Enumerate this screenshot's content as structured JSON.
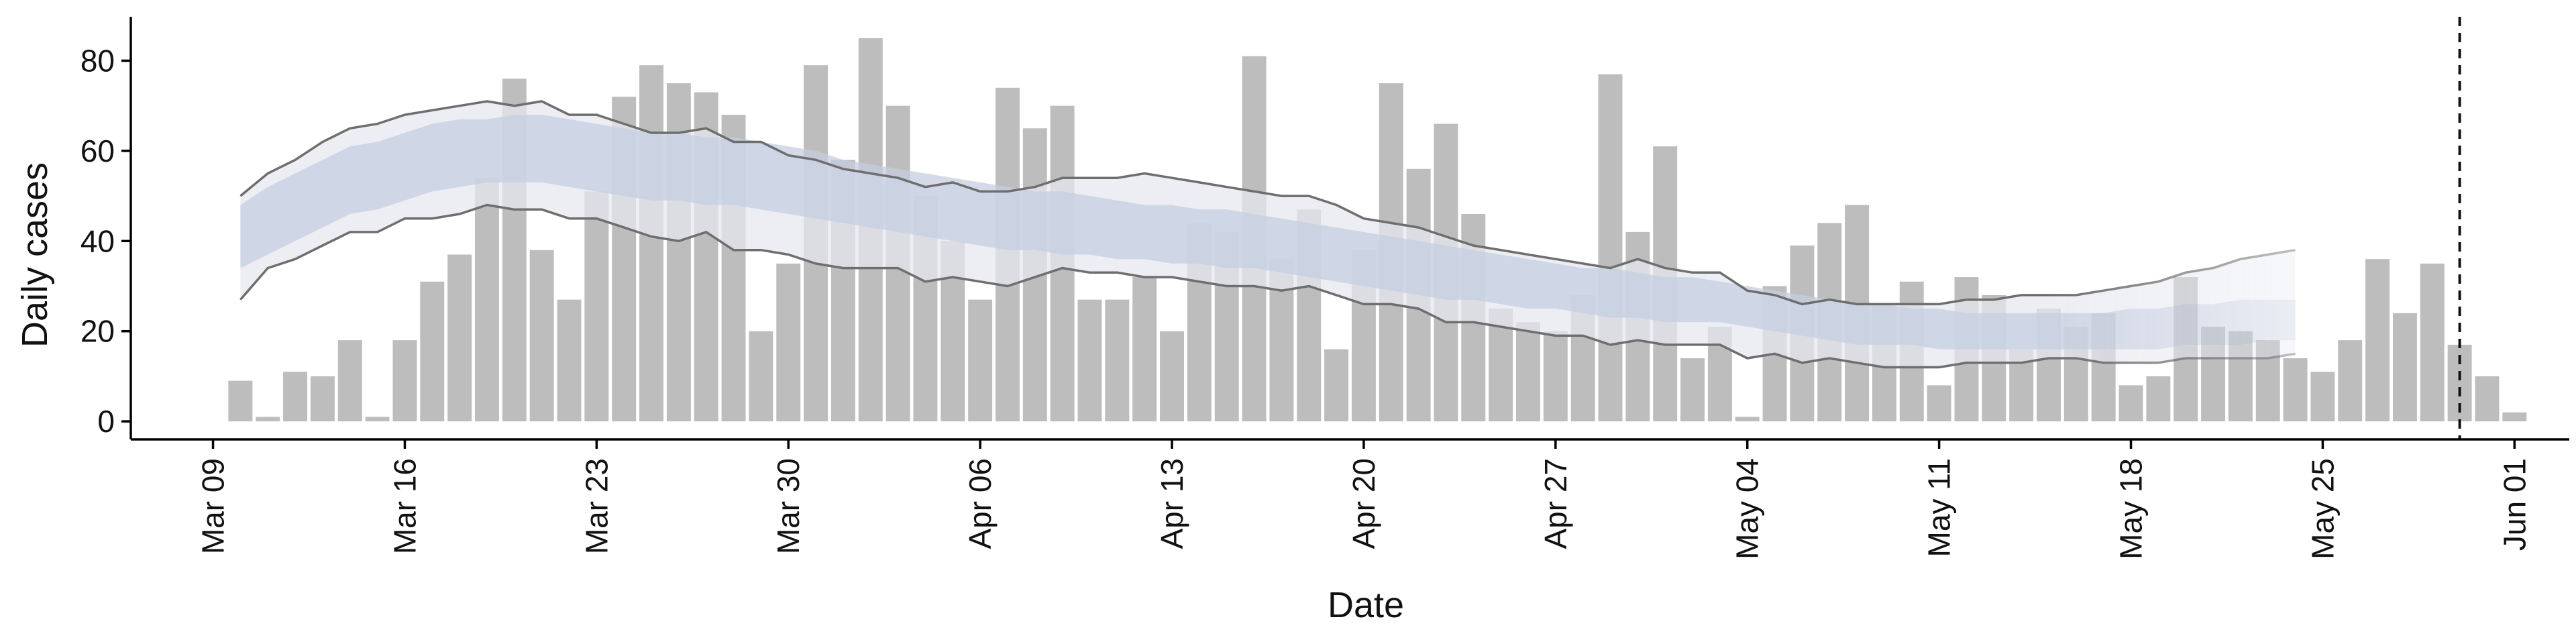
{
  "chart_data": {
    "type": "bar",
    "title": "",
    "xlabel": "Date",
    "ylabel": "Daily cases",
    "ylim": [
      -4,
      89
    ],
    "yticks": [
      0,
      20,
      40,
      60,
      80
    ],
    "xlim": [
      "2020-03-06",
      "2020-06-03"
    ],
    "xticks": [
      {
        "date": "2020-03-09",
        "label": "Mar 09"
      },
      {
        "date": "2020-03-16",
        "label": "Mar 16"
      },
      {
        "date": "2020-03-23",
        "label": "Mar 23"
      },
      {
        "date": "2020-03-30",
        "label": "Mar 30"
      },
      {
        "date": "2020-04-06",
        "label": "Apr 06"
      },
      {
        "date": "2020-04-13",
        "label": "Apr 13"
      },
      {
        "date": "2020-04-20",
        "label": "Apr 20"
      },
      {
        "date": "2020-04-27",
        "label": "Apr 27"
      },
      {
        "date": "2020-05-04",
        "label": "May 04"
      },
      {
        "date": "2020-05-11",
        "label": "May 11"
      },
      {
        "date": "2020-05-18",
        "label": "May 18"
      },
      {
        "date": "2020-05-25",
        "label": "May 25"
      },
      {
        "date": "2020-06-01",
        "label": "Jun 01"
      }
    ],
    "grid": false,
    "bars": {
      "start_date": "2020-03-10",
      "color": "#bdbdbd",
      "values": [
        9,
        1,
        11,
        10,
        18,
        1,
        18,
        31,
        37,
        54,
        76,
        38,
        27,
        51,
        72,
        79,
        75,
        73,
        68,
        20,
        35,
        79,
        58,
        85,
        70,
        50,
        40,
        27,
        74,
        65,
        70,
        27,
        27,
        32,
        20,
        44,
        42,
        81,
        36,
        47,
        16,
        38,
        75,
        56,
        66,
        46,
        25,
        22,
        20,
        28,
        77,
        42,
        61,
        14,
        21,
        1,
        30,
        39,
        44,
        48,
        26,
        31,
        8,
        32,
        28,
        16,
        25,
        21,
        24,
        8,
        10,
        32,
        21,
        20,
        18,
        14,
        11,
        18,
        36,
        24,
        35,
        17,
        10,
        2
      ]
    },
    "nowcast": {
      "start_date": "2020-03-10",
      "end_date": "2020-05-24",
      "outer_color": "#e6e8ef",
      "inner_color": "#c6cee0",
      "line_color": "#6e6e6e",
      "fade_from_date": "2020-05-15",
      "median": [
        41,
        45,
        48,
        51,
        54,
        55,
        57,
        59,
        60,
        60,
        61,
        61,
        60,
        59,
        58,
        57,
        57,
        56,
        56,
        55,
        54,
        53,
        51,
        50,
        49,
        48,
        47,
        46,
        45,
        44,
        44,
        43,
        42,
        42,
        41,
        41,
        40,
        40,
        39,
        38,
        37,
        36,
        35,
        34,
        33,
        32,
        31,
        31,
        30,
        29,
        28,
        28,
        27,
        27,
        26,
        25,
        24,
        23,
        22,
        21,
        21,
        20,
        20,
        20,
        20,
        20,
        20,
        20,
        20,
        20,
        20,
        21,
        21,
        22,
        22,
        22
      ],
      "inner_low": [
        34,
        37,
        40,
        43,
        46,
        47,
        49,
        51,
        52,
        53,
        53,
        53,
        52,
        51,
        50,
        49,
        49,
        48,
        48,
        47,
        46,
        45,
        44,
        43,
        42,
        41,
        40,
        39,
        38,
        38,
        37,
        37,
        36,
        36,
        35,
        35,
        34,
        34,
        33,
        32,
        31,
        30,
        29,
        28,
        27,
        27,
        26,
        25,
        25,
        24,
        23,
        23,
        22,
        22,
        22,
        21,
        20,
        19,
        18,
        17,
        17,
        17,
        16,
        16,
        16,
        16,
        16,
        16,
        16,
        16,
        16,
        17,
        17,
        17,
        18,
        18
      ],
      "inner_high": [
        48,
        52,
        55,
        58,
        61,
        62,
        64,
        66,
        67,
        67,
        68,
        68,
        67,
        66,
        65,
        64,
        64,
        63,
        63,
        62,
        61,
        60,
        58,
        57,
        56,
        55,
        54,
        53,
        52,
        51,
        51,
        50,
        49,
        48,
        48,
        47,
        47,
        46,
        45,
        44,
        43,
        42,
        41,
        40,
        39,
        38,
        37,
        36,
        35,
        34,
        34,
        33,
        32,
        32,
        31,
        30,
        29,
        28,
        27,
        26,
        26,
        25,
        25,
        24,
        24,
        24,
        24,
        24,
        24,
        25,
        25,
        26,
        26,
        27,
        27,
        27
      ],
      "lower": [
        27,
        34,
        36,
        39,
        42,
        42,
        45,
        45,
        46,
        48,
        47,
        47,
        45,
        45,
        43,
        41,
        40,
        42,
        38,
        38,
        37,
        35,
        34,
        34,
        34,
        31,
        32,
        31,
        30,
        32,
        34,
        33,
        33,
        32,
        32,
        31,
        30,
        30,
        29,
        30,
        28,
        26,
        26,
        25,
        22,
        22,
        21,
        20,
        19,
        19,
        17,
        18,
        17,
        17,
        17,
        14,
        15,
        13,
        14,
        13,
        12,
        12,
        12,
        13,
        13,
        13,
        14,
        14,
        13,
        13,
        13,
        14,
        14,
        14,
        14,
        15
      ],
      "upper": [
        50,
        55,
        58,
        62,
        65,
        66,
        68,
        69,
        70,
        71,
        70,
        71,
        68,
        68,
        66,
        64,
        64,
        65,
        62,
        62,
        59,
        58,
        56,
        55,
        54,
        52,
        53,
        51,
        51,
        52,
        54,
        54,
        54,
        55,
        54,
        53,
        52,
        51,
        50,
        50,
        48,
        45,
        44,
        43,
        41,
        39,
        38,
        37,
        36,
        35,
        34,
        36,
        34,
        33,
        33,
        29,
        28,
        26,
        27,
        26,
        26,
        26,
        26,
        27,
        27,
        28,
        28,
        28,
        29,
        30,
        31,
        33,
        34,
        36,
        37,
        38
      ]
    },
    "reference_line": {
      "date": "2020-05-30",
      "style": "dashed",
      "color": "#111111"
    }
  }
}
